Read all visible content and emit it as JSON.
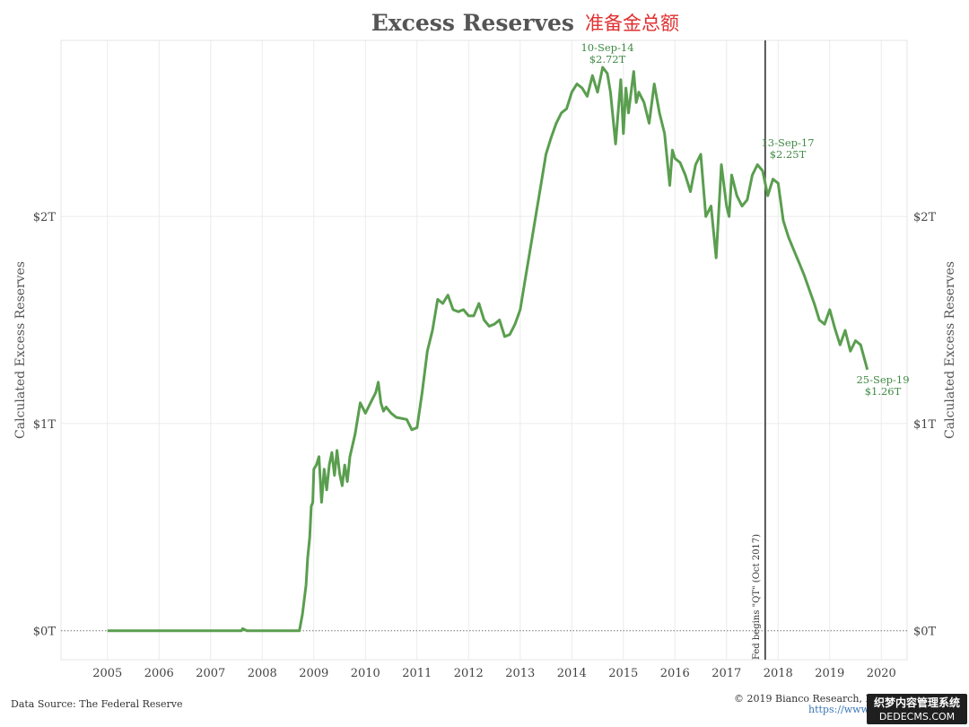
{
  "header": {
    "title_en": "Excess Reserves",
    "title_cn": "准备金总额"
  },
  "chart_data": {
    "type": "line",
    "ylabel": "Calculated Excess Reserves",
    "xlim": [
      2004.1,
      2020.5
    ],
    "ylim": [
      -0.14,
      2.85
    ],
    "x_ticks": [
      2005,
      2006,
      2007,
      2008,
      2009,
      2010,
      2011,
      2012,
      2013,
      2014,
      2015,
      2016,
      2017,
      2018,
      2019,
      2020
    ],
    "y_ticks": [
      {
        "value": 0,
        "label": "$0T"
      },
      {
        "value": 1,
        "label": "$1T"
      },
      {
        "value": 2,
        "label": "$2T"
      }
    ],
    "grid": true,
    "color": "#5a9e4f",
    "series": [
      {
        "name": "",
        "x": [
          2005.0,
          2006.0,
          2007.0,
          2007.6,
          2007.62,
          2007.7,
          2008.0,
          2008.5,
          2008.72,
          2008.78,
          2008.85,
          2008.88,
          2008.92,
          2008.95,
          2008.98,
          2009.0,
          2009.05,
          2009.1,
          2009.15,
          2009.2,
          2009.25,
          2009.3,
          2009.35,
          2009.4,
          2009.45,
          2009.5,
          2009.55,
          2009.6,
          2009.65,
          2009.7,
          2009.8,
          2009.9,
          2010.0,
          2010.1,
          2010.2,
          2010.25,
          2010.3,
          2010.35,
          2010.4,
          2010.5,
          2010.6,
          2010.8,
          2010.9,
          2011.0,
          2011.1,
          2011.2,
          2011.3,
          2011.4,
          2011.5,
          2011.6,
          2011.7,
          2011.8,
          2011.9,
          2012.0,
          2012.1,
          2012.2,
          2012.3,
          2012.4,
          2012.5,
          2012.6,
          2012.7,
          2012.8,
          2012.9,
          2013.0,
          2013.1,
          2013.2,
          2013.3,
          2013.4,
          2013.5,
          2013.6,
          2013.7,
          2013.8,
          2013.9,
          2014.0,
          2014.1,
          2014.2,
          2014.3,
          2014.4,
          2014.5,
          2014.6,
          2014.69,
          2014.75,
          2014.85,
          2014.95,
          2015.0,
          2015.05,
          2015.1,
          2015.2,
          2015.25,
          2015.3,
          2015.4,
          2015.5,
          2015.6,
          2015.7,
          2015.8,
          2015.9,
          2015.95,
          2016.0,
          2016.1,
          2016.2,
          2016.3,
          2016.4,
          2016.5,
          2016.6,
          2016.7,
          2016.8,
          2016.9,
          2017.0,
          2017.05,
          2017.1,
          2017.2,
          2017.3,
          2017.4,
          2017.5,
          2017.6,
          2017.7,
          2017.8,
          2017.9,
          2018.0,
          2018.1,
          2018.2,
          2018.3,
          2018.4,
          2018.5,
          2018.6,
          2018.7,
          2018.8,
          2018.9,
          2019.0,
          2019.1,
          2019.2,
          2019.3,
          2019.4,
          2019.5,
          2019.6,
          2019.73
        ],
        "y": [
          0.0,
          0.0,
          0.0,
          0.0,
          0.01,
          0.0,
          0.0,
          0.0,
          0.0,
          0.08,
          0.22,
          0.35,
          0.45,
          0.6,
          0.62,
          0.78,
          0.8,
          0.84,
          0.62,
          0.78,
          0.68,
          0.8,
          0.86,
          0.75,
          0.87,
          0.76,
          0.7,
          0.8,
          0.72,
          0.84,
          0.95,
          1.1,
          1.05,
          1.1,
          1.15,
          1.2,
          1.1,
          1.06,
          1.08,
          1.05,
          1.03,
          1.02,
          0.97,
          0.98,
          1.15,
          1.35,
          1.45,
          1.6,
          1.58,
          1.62,
          1.55,
          1.54,
          1.55,
          1.52,
          1.52,
          1.58,
          1.5,
          1.47,
          1.48,
          1.5,
          1.42,
          1.43,
          1.48,
          1.55,
          1.7,
          1.85,
          2.0,
          2.15,
          2.3,
          2.38,
          2.45,
          2.5,
          2.52,
          2.6,
          2.64,
          2.62,
          2.58,
          2.68,
          2.6,
          2.72,
          2.69,
          2.6,
          2.35,
          2.66,
          2.4,
          2.62,
          2.5,
          2.7,
          2.55,
          2.6,
          2.55,
          2.45,
          2.64,
          2.5,
          2.4,
          2.15,
          2.32,
          2.28,
          2.26,
          2.2,
          2.12,
          2.25,
          2.3,
          2.0,
          2.05,
          1.8,
          2.25,
          2.05,
          2.0,
          2.2,
          2.1,
          2.05,
          2.08,
          2.2,
          2.25,
          2.22,
          2.1,
          2.18,
          2.16,
          1.98,
          1.9,
          1.84,
          1.78,
          1.72,
          1.65,
          1.58,
          1.5,
          1.48,
          1.55,
          1.46,
          1.38,
          1.45,
          1.35,
          1.4,
          1.38,
          1.26
        ]
      }
    ],
    "annotations": [
      {
        "date": "10-Sep-14",
        "value_label": "$2.72T"
      },
      {
        "date": "13-Sep-17",
        "value_label": "$2.25T"
      },
      {
        "date": "25-Sep-19",
        "value_label": "$1.26T"
      }
    ],
    "vertical_line": {
      "x": 2017.75,
      "label": "Fed begins \"QT\" (Oct 2017)"
    }
  },
  "footer": {
    "source": "Data Source: The Federal Reserve",
    "copyright": "© 2019 Bianco Research, L.L.C.",
    "link": "https://www."
  },
  "watermark": {
    "top": "织梦内容管理系统",
    "bottom": "DEDECMS.COM"
  }
}
